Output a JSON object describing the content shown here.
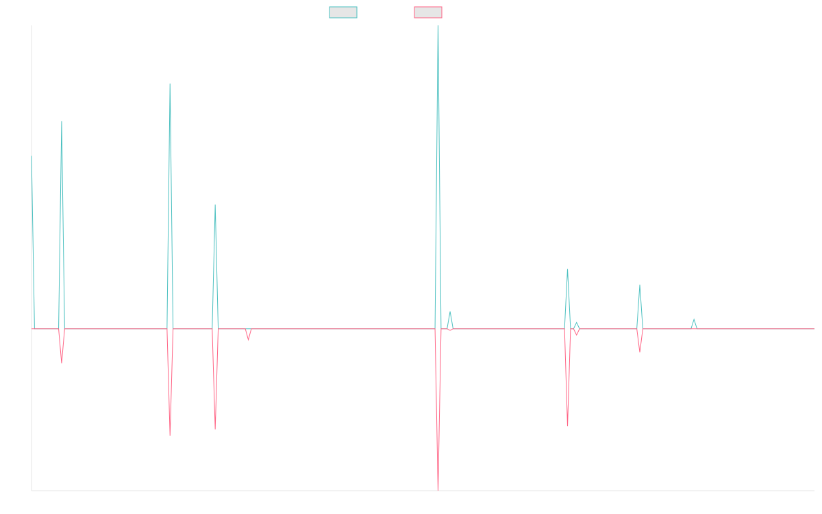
{
  "chart_data": {
    "type": "line",
    "title": "",
    "xlabel": "",
    "ylabel": "",
    "grid": false,
    "legend_position": "top-center",
    "xlim": [
      0,
      260
    ],
    "ylim": [
      -1.03,
      1.93
    ],
    "series": [
      {
        "color": "#4bc0c0",
        "legend_fill": "#e6e6e6",
        "x": [
          0,
          1,
          9,
          10,
          11,
          45,
          46,
          47,
          60,
          61,
          62,
          134,
          135,
          136,
          138,
          139,
          140,
          177,
          178,
          179,
          180,
          181,
          182,
          201,
          202,
          203,
          219,
          220,
          221,
          260
        ],
        "values": [
          1.1,
          0,
          0,
          1.32,
          0,
          0,
          1.56,
          0,
          0,
          0.79,
          0,
          0,
          1.93,
          0,
          0,
          0.11,
          0,
          0,
          0.38,
          0,
          0,
          0.04,
          0,
          0,
          0.28,
          0,
          0,
          0.06,
          0,
          0
        ]
      },
      {
        "color": "#ff6384",
        "legend_fill": "#e6e6e6",
        "x": [
          0,
          1,
          9,
          10,
          11,
          45,
          46,
          47,
          60,
          61,
          62,
          71,
          72,
          73,
          134,
          135,
          136,
          138,
          139,
          140,
          177,
          178,
          179,
          180,
          181,
          182,
          201,
          202,
          203,
          260
        ],
        "values": [
          0,
          0,
          0,
          -0.22,
          0,
          0,
          -0.68,
          0,
          0,
          -0.64,
          0,
          0,
          -0.07,
          0,
          0,
          -1.03,
          0,
          0,
          -0.01,
          0,
          0,
          -0.62,
          0,
          0,
          -0.04,
          0,
          0,
          -0.15,
          0,
          0
        ]
      }
    ]
  }
}
